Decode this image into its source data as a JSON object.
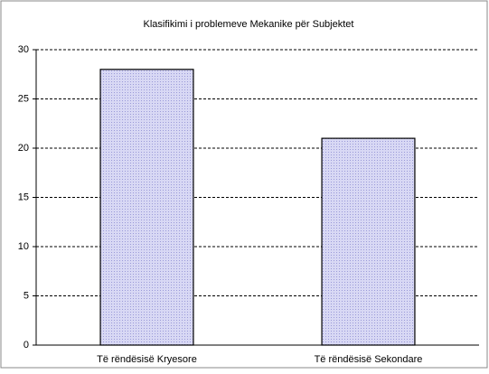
{
  "chart_data": {
    "type": "bar",
    "title": "Klasifikimi i problemeve Mekanike për Subjektet",
    "categories": [
      "Të rëndësisë Kryesore",
      "Të rëndësisë Sekondare"
    ],
    "values": [
      28,
      21
    ],
    "color": "#c9c9ef",
    "ylim": [
      0,
      30
    ],
    "yticks": [
      0,
      5,
      10,
      15,
      20,
      25,
      30
    ],
    "grid": true
  }
}
